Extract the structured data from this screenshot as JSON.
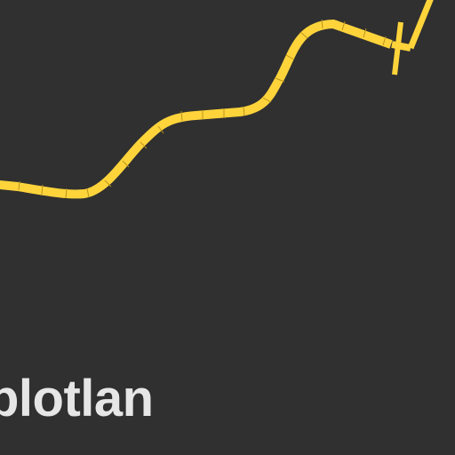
{
  "colors": {
    "background": "#303030",
    "track": "#ffd43b",
    "track_seam": "#b8931d",
    "text": "#e6e6e6"
  },
  "brand": {
    "text": "plotlan"
  },
  "icons": {
    "track_end": "t-junction-icon"
  }
}
